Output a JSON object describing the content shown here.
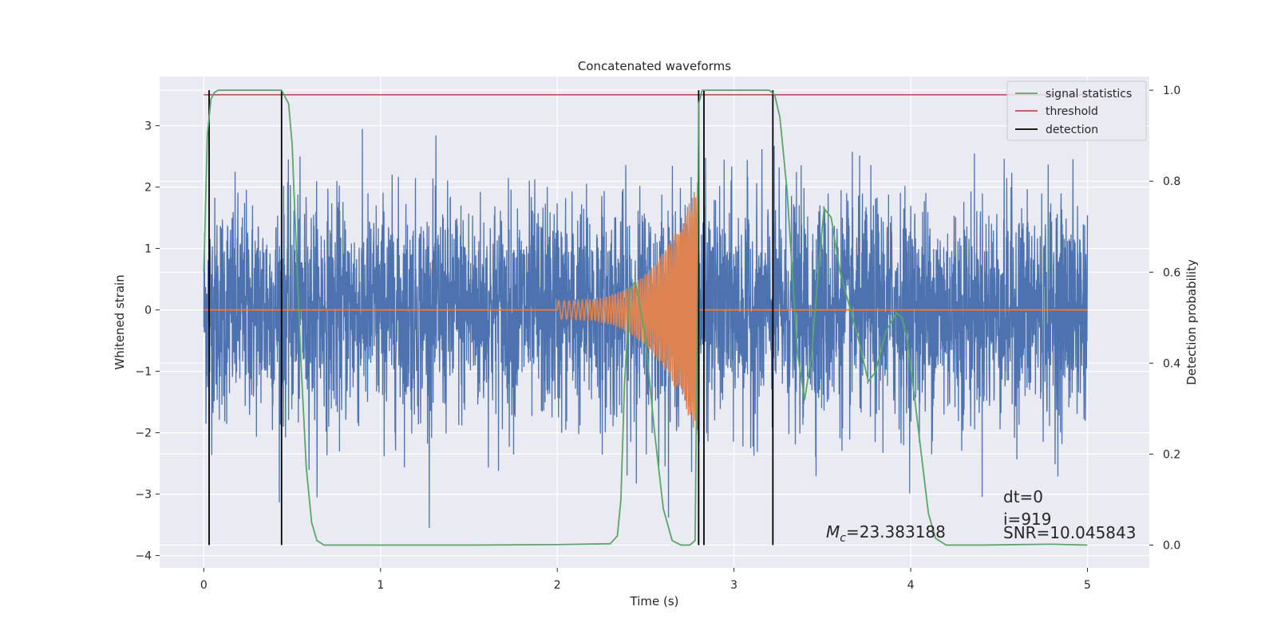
{
  "chart_data": {
    "type": "line",
    "title": "Concatenated waveforms",
    "xlabel": "Time (s)",
    "ylabel": "Whitened strain",
    "ylabel_right": "Detection probability",
    "xlim": [
      -0.25,
      5.35
    ],
    "ylim": [
      -4.2,
      3.8
    ],
    "ylim_right": [
      -0.05,
      1.03
    ],
    "x_ticks": [
      0,
      1,
      2,
      3,
      4,
      5
    ],
    "y_ticks": [
      -4,
      -3,
      -2,
      -1,
      0,
      1,
      2,
      3
    ],
    "y_ticks_right": [
      0.0,
      0.2,
      0.4,
      0.6,
      0.8,
      1.0
    ],
    "x_tick_labels": [
      "0",
      "1",
      "2",
      "3",
      "4",
      "5"
    ],
    "y_tick_labels": [
      "−4",
      "−3",
      "−2",
      "−1",
      "0",
      "1",
      "2",
      "3"
    ],
    "y_tick_labels_right": [
      "0.0",
      "0.2",
      "0.4",
      "0.6",
      "0.8",
      "1.0"
    ],
    "grid": true,
    "legend_position": "top-right",
    "legend": [
      "signal statistics",
      "threshold",
      "detection"
    ],
    "colors": {
      "noise": "#4c72b0",
      "template": "#dd8452",
      "signal_statistics": "#55a868",
      "threshold": "#c44e52",
      "detection": "#000000",
      "plot_bg": "#eaeaf2",
      "grid": "#ffffff"
    },
    "noise_series": {
      "x_start": 0,
      "x_end": 5.0,
      "typical_amplitude": 0.9,
      "peak_amplitude": 3.45
    },
    "template_series": {
      "x_start": 2.0,
      "x_end": 2.8,
      "f_start": 30,
      "f_end": 80,
      "amp_start": 0.15,
      "amp_end": 2.15
    },
    "signal_statistics": {
      "x": [
        0.0,
        0.02,
        0.04,
        0.06,
        0.08,
        0.12,
        0.2,
        0.3,
        0.4,
        0.44,
        0.48,
        0.5,
        0.52,
        0.55,
        0.58,
        0.61,
        0.64,
        0.68,
        0.8,
        1.0,
        1.5,
        2.0,
        2.3,
        2.34,
        2.36,
        2.38,
        2.41,
        2.44,
        2.47,
        2.5,
        2.55,
        2.6,
        2.65,
        2.7,
        2.75,
        2.78,
        2.79,
        2.8,
        2.82,
        2.86,
        2.9,
        3.0,
        3.2,
        3.23,
        3.26,
        3.3,
        3.33,
        3.36,
        3.4,
        3.44,
        3.48,
        3.51,
        3.55,
        3.6,
        3.7,
        3.76,
        3.8,
        3.86,
        3.92,
        3.95,
        3.98,
        4.02,
        4.06,
        4.1,
        4.14,
        4.2,
        4.4,
        4.8,
        5.0
      ],
      "y": [
        0.6,
        0.9,
        0.98,
        0.995,
        1.0,
        1.0,
        1.0,
        1.0,
        1.0,
        1.0,
        0.97,
        0.88,
        0.68,
        0.4,
        0.17,
        0.05,
        0.01,
        0.0,
        0.0,
        0.0,
        0.0,
        0.001,
        0.003,
        0.02,
        0.1,
        0.35,
        0.56,
        0.58,
        0.52,
        0.45,
        0.25,
        0.08,
        0.01,
        0.0,
        0.0,
        0.01,
        0.4,
        0.97,
        1.0,
        1.0,
        1.0,
        1.0,
        1.0,
        0.99,
        0.94,
        0.78,
        0.6,
        0.42,
        0.32,
        0.42,
        0.62,
        0.74,
        0.72,
        0.6,
        0.46,
        0.36,
        0.38,
        0.47,
        0.51,
        0.5,
        0.45,
        0.33,
        0.2,
        0.07,
        0.015,
        0.0,
        0.0,
        0.002,
        0.0
      ]
    },
    "threshold": 0.99,
    "detections": [
      0.03,
      0.44,
      2.8,
      2.83,
      3.22
    ],
    "annotations": {
      "mc_symbol": "M",
      "mc_subscript": "c",
      "mc_value": "=23.383188",
      "dt": "dt=0",
      "i": "i=919",
      "snr": "SNR=10.045843"
    }
  }
}
